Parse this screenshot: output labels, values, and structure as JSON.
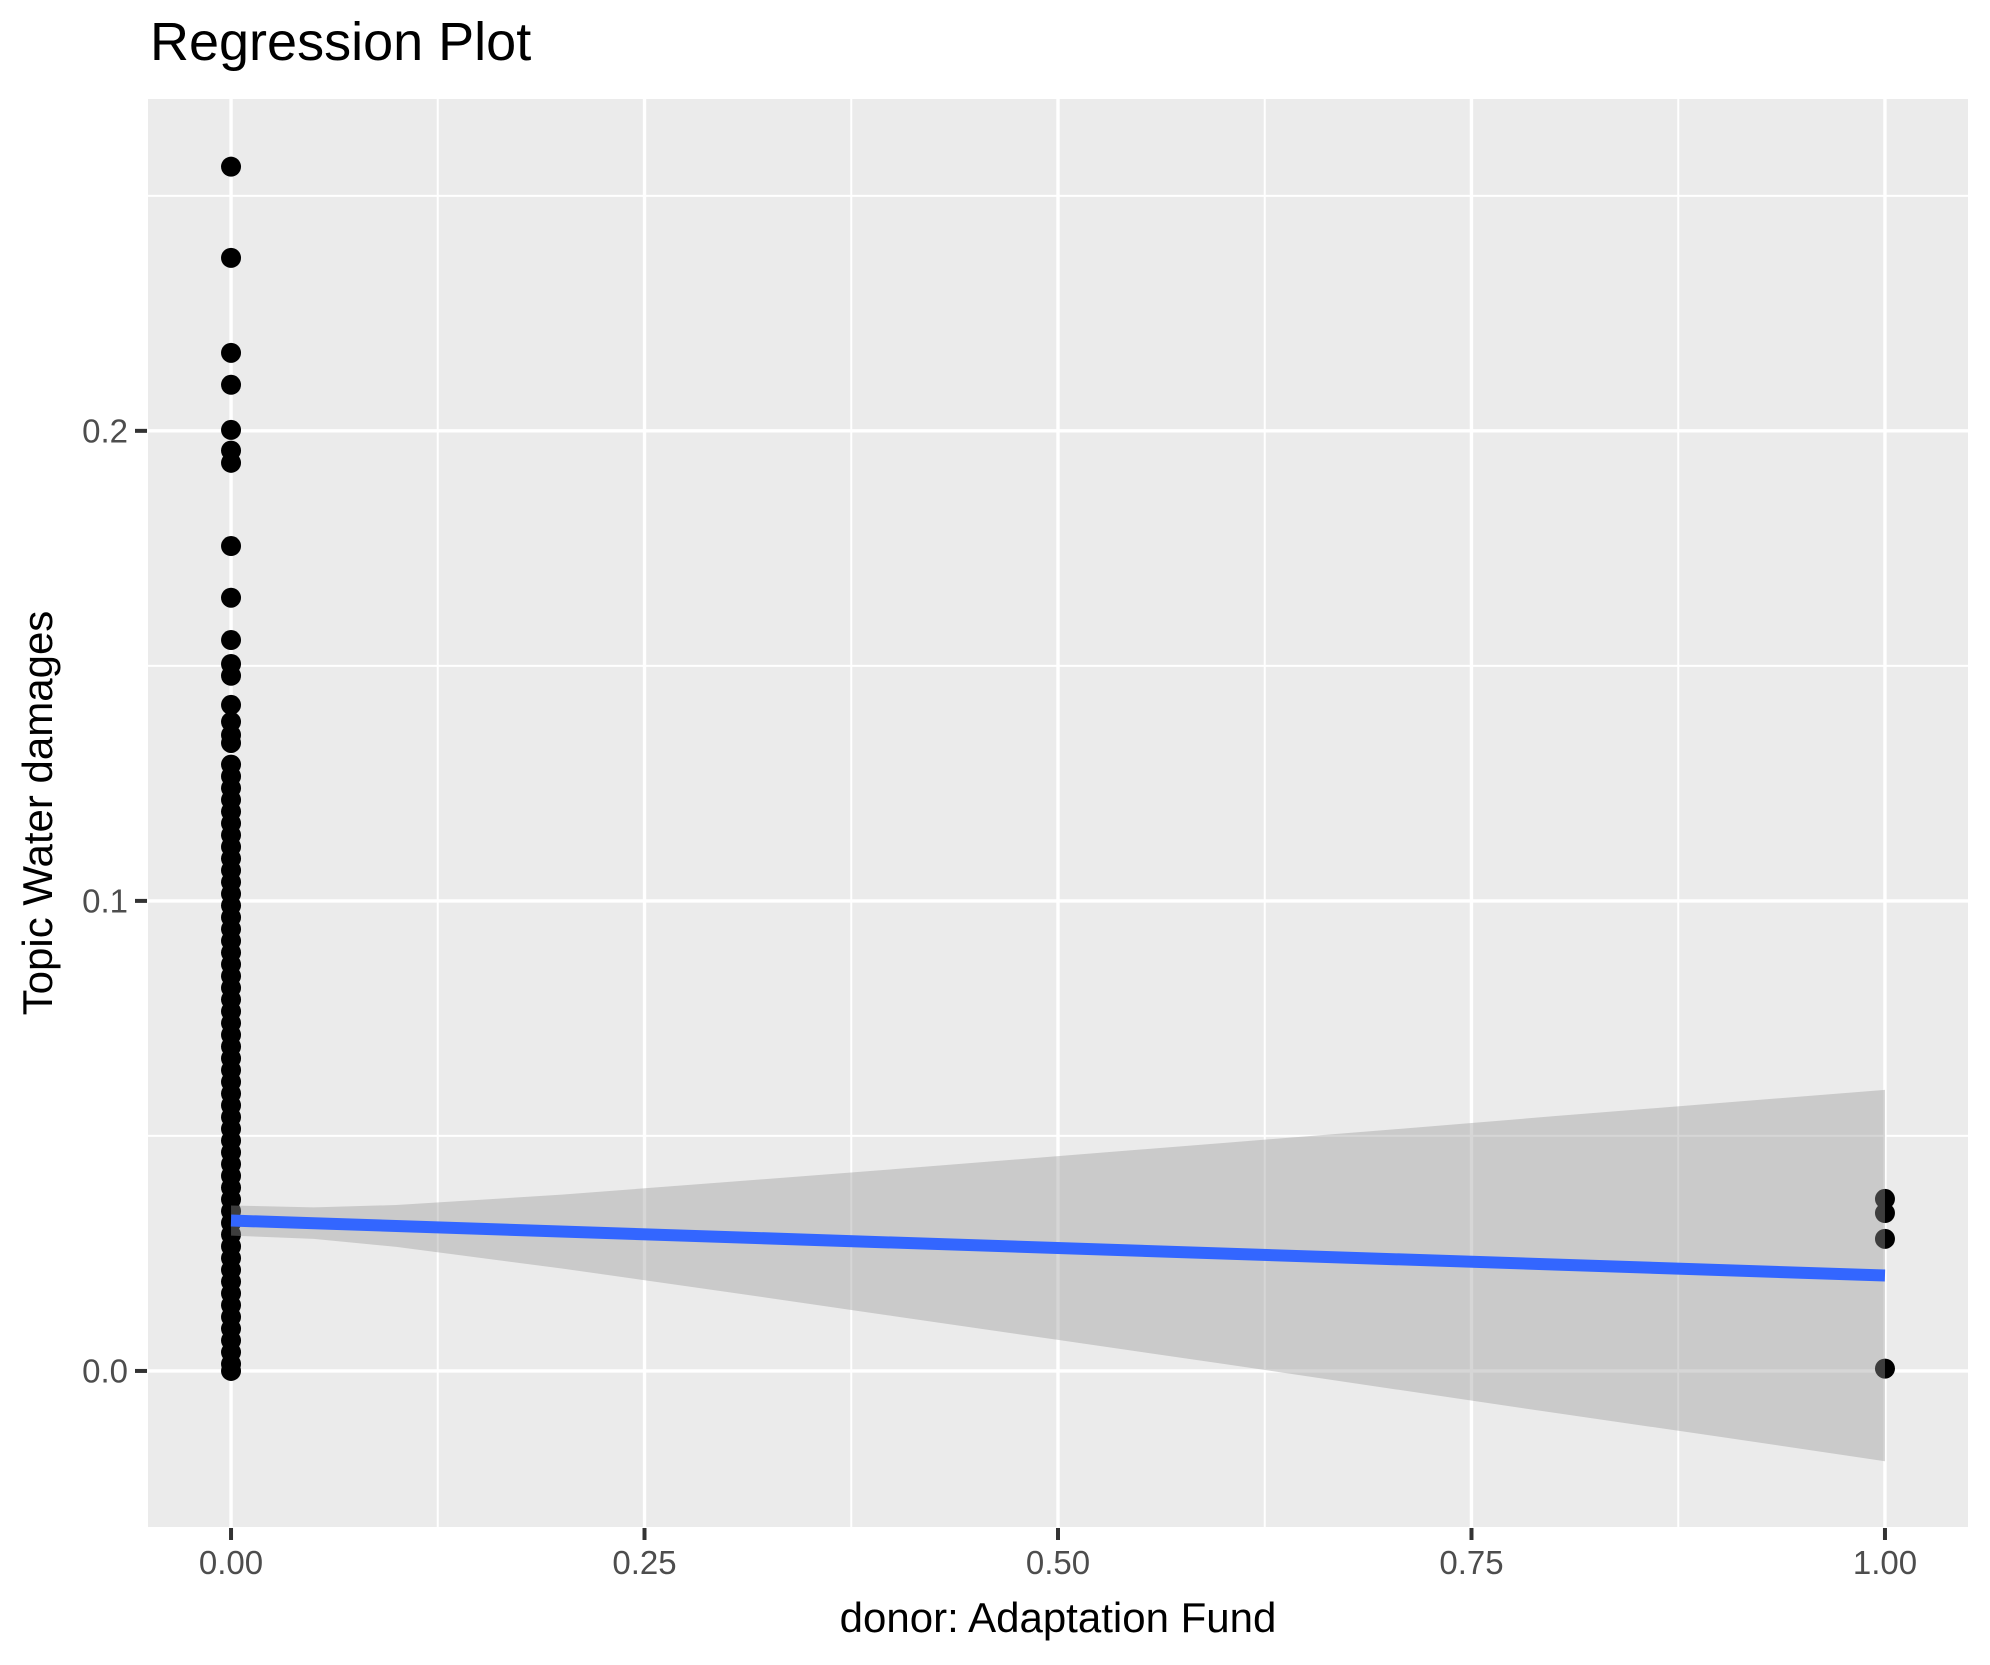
{
  "chart_data": {
    "type": "scatter",
    "title": "Regression Plot",
    "xlabel": "donor: Adaptation Fund",
    "ylabel": "Topic Water damages",
    "legend": "none",
    "grid": "on",
    "xlim": [
      -0.0502,
      1.0502
    ],
    "ylim": [
      -0.0332,
      0.2706
    ],
    "x_major_ticks": [
      0.0,
      0.25,
      0.5,
      0.75,
      1.0
    ],
    "x_tick_labels": [
      "0.00",
      "0.25",
      "0.50",
      "0.75",
      "1.00"
    ],
    "x_minor_ticks": [
      0.125,
      0.375,
      0.625,
      0.875
    ],
    "y_major_ticks": [
      0.0,
      0.1,
      0.2
    ],
    "y_tick_labels": [
      "0.0",
      "0.1",
      "0.2"
    ],
    "y_minor_ticks": [
      0.05,
      0.15,
      0.25
    ],
    "series": [
      {
        "name": "points at donor=0",
        "x": 0,
        "values": [
          0.2562,
          0.2368,
          0.2166,
          0.2098,
          0.2002,
          0.1958,
          0.1932,
          0.1755,
          0.1645,
          0.1555,
          0.1504,
          0.1479,
          0.1417,
          0.1381,
          0.1353,
          0.1336,
          0.129,
          0.1265,
          0.124,
          0.1215,
          0.119,
          0.1165,
          0.114,
          0.1115,
          0.109,
          0.1065,
          0.104,
          0.1015,
          0.099,
          0.0965,
          0.094,
          0.0915,
          0.089,
          0.0865,
          0.084,
          0.0815,
          0.079,
          0.0765,
          0.074,
          0.0715,
          0.069,
          0.0665,
          0.064,
          0.0615,
          0.059,
          0.0565,
          0.054,
          0.0515,
          0.049,
          0.0465,
          0.044,
          0.0415,
          0.039,
          0.0365,
          0.034,
          0.0315,
          0.029,
          0.0265,
          0.024,
          0.0215,
          0.019,
          0.0165,
          0.014,
          0.0115,
          0.009,
          0.0065,
          0.004,
          0.0015,
          0.0
        ]
      },
      {
        "name": "points at donor=1",
        "x": 1,
        "values": [
          0.0366,
          0.0336,
          0.0281,
          0.0005
        ]
      }
    ],
    "regression_line": {
      "x": [
        0,
        1
      ],
      "y": [
        0.032,
        0.0203
      ]
    },
    "confidence_band": {
      "x": [
        0.0,
        0.05,
        0.1,
        0.2,
        0.3,
        0.4,
        0.5,
        0.6,
        0.7,
        0.8,
        0.9,
        1.0
      ],
      "upper": [
        0.0352,
        0.0348,
        0.0353,
        0.0375,
        0.0402,
        0.0429,
        0.0457,
        0.0485,
        0.0513,
        0.0542,
        0.057,
        0.0598
      ],
      "lower": [
        0.0288,
        0.0281,
        0.0264,
        0.0218,
        0.0168,
        0.0117,
        0.0066,
        0.0015,
        -0.0037,
        -0.0089,
        -0.014,
        -0.0192
      ]
    },
    "colors": {
      "panel_background": "#EBEBEB",
      "grid": "#FFFFFF",
      "point": "#000000",
      "regression_line": "#3366FF",
      "band_fill": "#999999",
      "band_opacity": 0.4,
      "tick_mark": "#333333",
      "tick_label": "#4D4D4D",
      "title": "#000000"
    }
  }
}
